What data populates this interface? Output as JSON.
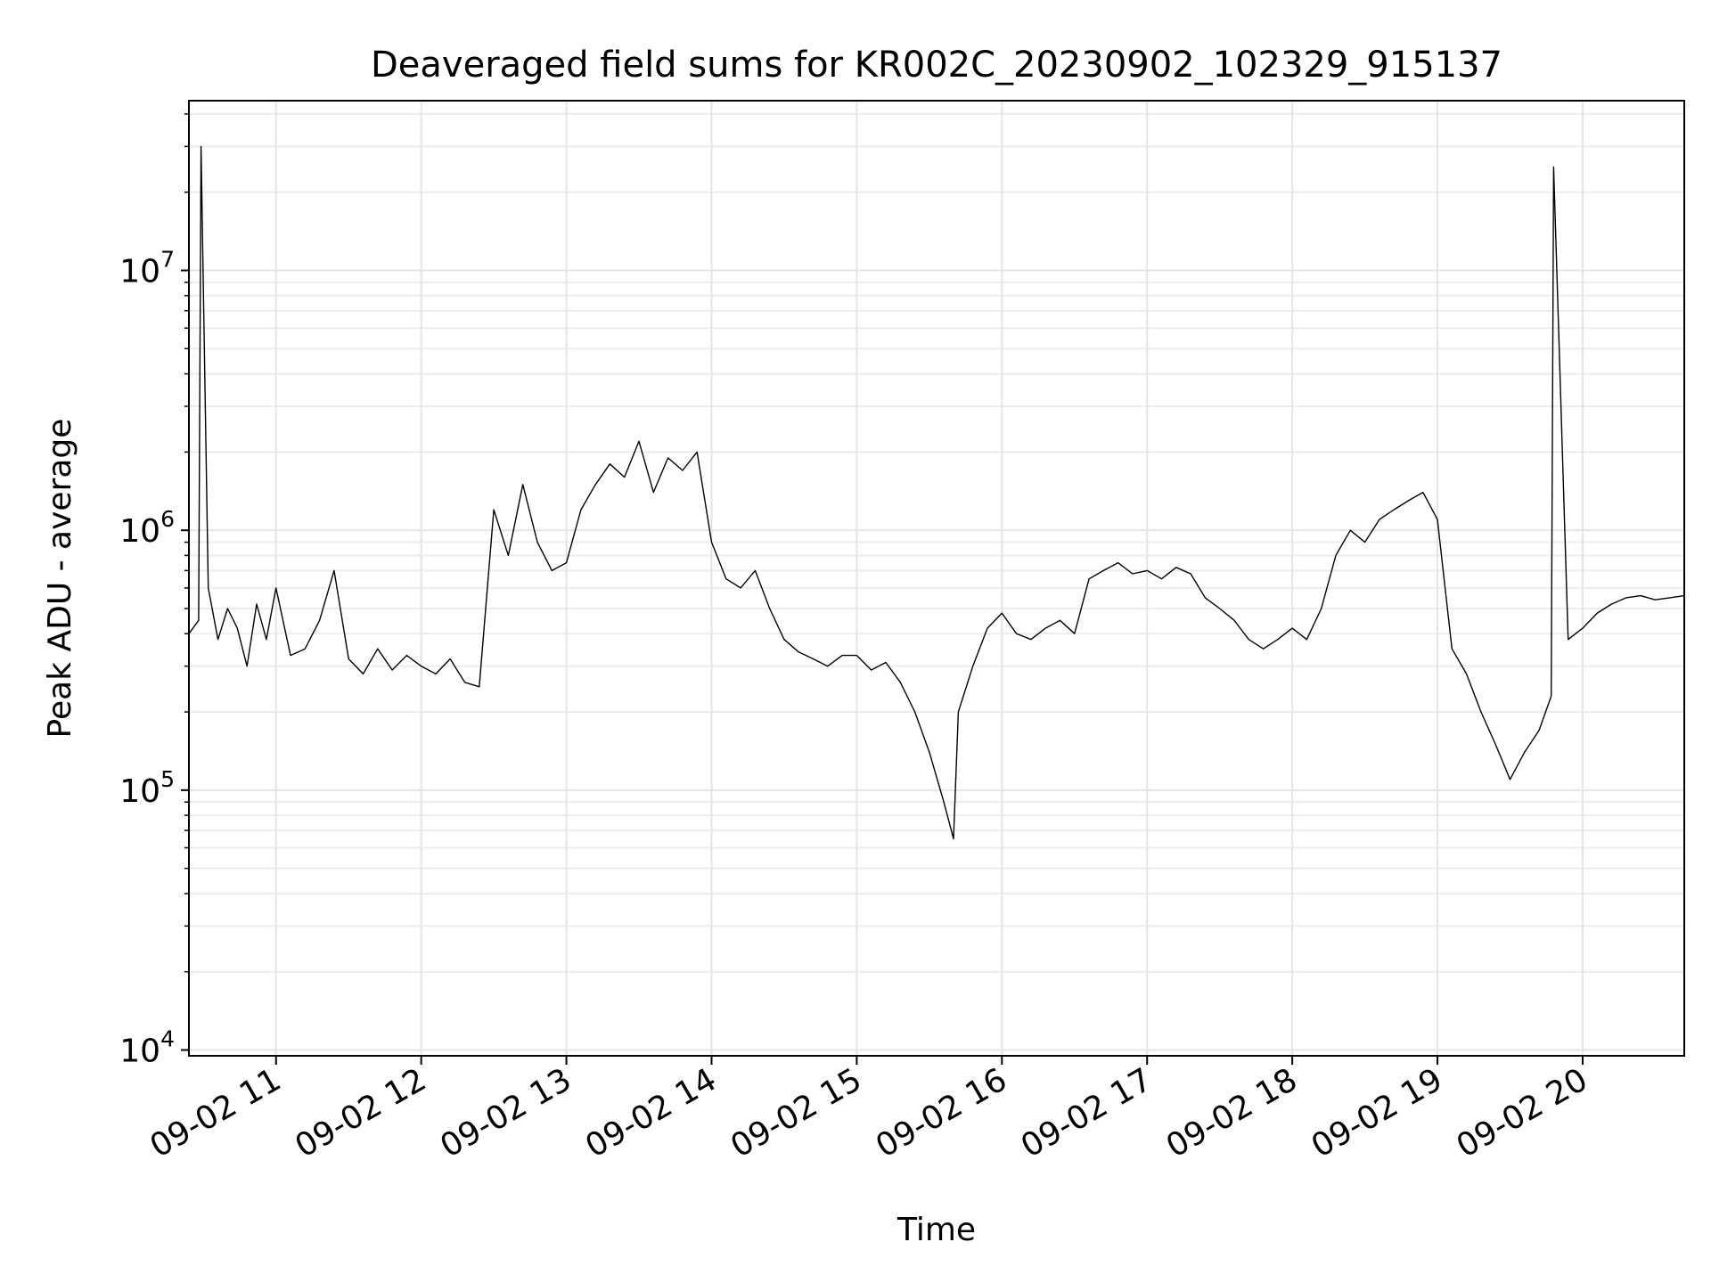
{
  "chart_data": {
    "type": "line",
    "title": "Deaveraged field sums for KR002C_20230902_102329_915137",
    "xlabel": "Time",
    "ylabel": "Peak ADU - average",
    "y_scale": "log",
    "ylim": [
      9500,
      45000000
    ],
    "xlim": [
      "2023-09-02 10:24",
      "2023-09-02 20:42"
    ],
    "grid": true,
    "line_color": "#000000",
    "y_ticks": [
      {
        "value": 10000,
        "base": "10",
        "exp": "4"
      },
      {
        "value": 100000,
        "base": "10",
        "exp": "5"
      },
      {
        "value": 1000000,
        "base": "10",
        "exp": "6"
      },
      {
        "value": 10000000,
        "base": "10",
        "exp": "7"
      }
    ],
    "x_ticks": [
      {
        "value": "2023-09-02 11:00",
        "label": "09-02 11"
      },
      {
        "value": "2023-09-02 12:00",
        "label": "09-02 12"
      },
      {
        "value": "2023-09-02 13:00",
        "label": "09-02 13"
      },
      {
        "value": "2023-09-02 14:00",
        "label": "09-02 14"
      },
      {
        "value": "2023-09-02 15:00",
        "label": "09-02 15"
      },
      {
        "value": "2023-09-02 16:00",
        "label": "09-02 16"
      },
      {
        "value": "2023-09-02 17:00",
        "label": "09-02 17"
      },
      {
        "value": "2023-09-02 18:00",
        "label": "09-02 18"
      },
      {
        "value": "2023-09-02 19:00",
        "label": "09-02 19"
      },
      {
        "value": "2023-09-02 20:00",
        "label": "09-02 20"
      }
    ],
    "series": [
      {
        "x": [
          "2023-09-02 10:24",
          "2023-09-02 10:28",
          "2023-09-02 10:29",
          "2023-09-02 10:32",
          "2023-09-02 10:36",
          "2023-09-02 10:40",
          "2023-09-02 10:44",
          "2023-09-02 10:48",
          "2023-09-02 10:52",
          "2023-09-02 10:56",
          "2023-09-02 11:00",
          "2023-09-02 11:06",
          "2023-09-02 11:12",
          "2023-09-02 11:18",
          "2023-09-02 11:24",
          "2023-09-02 11:30",
          "2023-09-02 11:36",
          "2023-09-02 11:42",
          "2023-09-02 11:48",
          "2023-09-02 11:54",
          "2023-09-02 12:00",
          "2023-09-02 12:06",
          "2023-09-02 12:12",
          "2023-09-02 12:18",
          "2023-09-02 12:24",
          "2023-09-02 12:30",
          "2023-09-02 12:36",
          "2023-09-02 12:42",
          "2023-09-02 12:48",
          "2023-09-02 12:54",
          "2023-09-02 13:00",
          "2023-09-02 13:06",
          "2023-09-02 13:12",
          "2023-09-02 13:18",
          "2023-09-02 13:24",
          "2023-09-02 13:30",
          "2023-09-02 13:36",
          "2023-09-02 13:42",
          "2023-09-02 13:48",
          "2023-09-02 13:54",
          "2023-09-02 14:00",
          "2023-09-02 14:06",
          "2023-09-02 14:12",
          "2023-09-02 14:18",
          "2023-09-02 14:24",
          "2023-09-02 14:30",
          "2023-09-02 14:36",
          "2023-09-02 14:42",
          "2023-09-02 14:48",
          "2023-09-02 14:54",
          "2023-09-02 15:00",
          "2023-09-02 15:06",
          "2023-09-02 15:12",
          "2023-09-02 15:18",
          "2023-09-02 15:24",
          "2023-09-02 15:30",
          "2023-09-02 15:36",
          "2023-09-02 15:40",
          "2023-09-02 15:42",
          "2023-09-02 15:48",
          "2023-09-02 15:54",
          "2023-09-02 16:00",
          "2023-09-02 16:06",
          "2023-09-02 16:12",
          "2023-09-02 16:18",
          "2023-09-02 16:24",
          "2023-09-02 16:30",
          "2023-09-02 16:36",
          "2023-09-02 16:42",
          "2023-09-02 16:48",
          "2023-09-02 16:54",
          "2023-09-02 17:00",
          "2023-09-02 17:06",
          "2023-09-02 17:12",
          "2023-09-02 17:18",
          "2023-09-02 17:24",
          "2023-09-02 17:30",
          "2023-09-02 17:36",
          "2023-09-02 17:42",
          "2023-09-02 17:48",
          "2023-09-02 17:54",
          "2023-09-02 18:00",
          "2023-09-02 18:06",
          "2023-09-02 18:12",
          "2023-09-02 18:18",
          "2023-09-02 18:24",
          "2023-09-02 18:30",
          "2023-09-02 18:36",
          "2023-09-02 18:42",
          "2023-09-02 18:48",
          "2023-09-02 18:54",
          "2023-09-02 19:00",
          "2023-09-02 19:06",
          "2023-09-02 19:12",
          "2023-09-02 19:18",
          "2023-09-02 19:24",
          "2023-09-02 19:30",
          "2023-09-02 19:36",
          "2023-09-02 19:42",
          "2023-09-02 19:47",
          "2023-09-02 19:48",
          "2023-09-02 19:54",
          "2023-09-02 20:00",
          "2023-09-02 20:06",
          "2023-09-02 20:12",
          "2023-09-02 20:18",
          "2023-09-02 20:24",
          "2023-09-02 20:30",
          "2023-09-02 20:36",
          "2023-09-02 20:42"
        ],
        "y": [
          400000,
          450000,
          30000000,
          600000,
          380000,
          500000,
          420000,
          300000,
          520000,
          380000,
          600000,
          330000,
          350000,
          450000,
          700000,
          320000,
          280000,
          350000,
          290000,
          330000,
          300000,
          280000,
          320000,
          260000,
          250000,
          1200000,
          800000,
          1500000,
          900000,
          700000,
          750000,
          1200000,
          1500000,
          1800000,
          1600000,
          2200000,
          1400000,
          1900000,
          1700000,
          2000000,
          900000,
          650000,
          600000,
          700000,
          500000,
          380000,
          340000,
          320000,
          300000,
          330000,
          330000,
          290000,
          310000,
          260000,
          200000,
          140000,
          90000,
          65000,
          200000,
          300000,
          420000,
          480000,
          400000,
          380000,
          420000,
          450000,
          400000,
          650000,
          700000,
          750000,
          680000,
          700000,
          650000,
          720000,
          680000,
          550000,
          500000,
          450000,
          380000,
          350000,
          380000,
          420000,
          380000,
          500000,
          800000,
          1000000,
          900000,
          1100000,
          1200000,
          1300000,
          1400000,
          1100000,
          350000,
          280000,
          200000,
          150000,
          110000,
          140000,
          170000,
          230000,
          25000000,
          380000,
          420000,
          480000,
          520000,
          550000,
          560000,
          540000,
          550000,
          560000
        ]
      }
    ]
  }
}
